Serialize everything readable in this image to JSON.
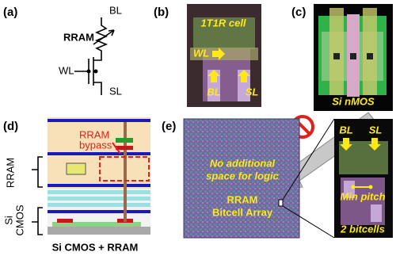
{
  "panel_a": {
    "label": "(a)",
    "bl": "BL",
    "rram": "RRAM",
    "wl": "WL",
    "sl": "SL"
  },
  "panel_b": {
    "label": "(b)",
    "title": "1T1R cell",
    "wl": "WL",
    "bl": "BL",
    "sl": "SL"
  },
  "panel_c": {
    "label": "(c)",
    "caption": "Si nMOS"
  },
  "panel_d": {
    "label": "(d)",
    "bypass": [
      "RRAM",
      "bypass"
    ],
    "rram": "RRAM",
    "si_cmos": [
      "Si",
      "CMOS"
    ],
    "caption": "Si CMOS + RRAM"
  },
  "panel_e": {
    "label": "(e)",
    "note": [
      "No additional",
      "space for logic"
    ],
    "array": [
      "RRAM",
      "Bitcell Array"
    ],
    "inset_bl": "BL",
    "inset_sl": "SL",
    "pitch": "Min pitch",
    "inset_caption": "2 bitcells"
  }
}
